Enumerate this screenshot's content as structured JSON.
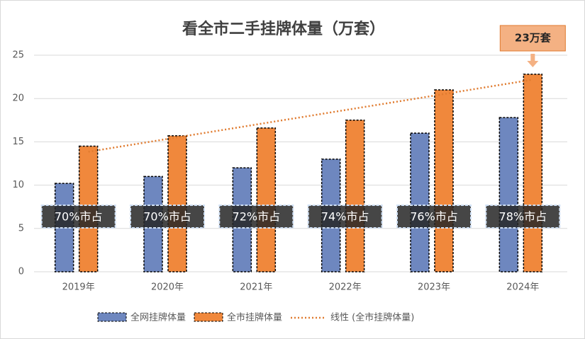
{
  "chart_data": {
    "type": "bar",
    "title": "看全市二手挂牌体量（万套）",
    "categories": [
      "2019年",
      "2020年",
      "2021年",
      "2022年",
      "2023年",
      "2024年"
    ],
    "series": [
      {
        "name": "全网挂牌体量",
        "color": "#6e87bf",
        "values": [
          10.2,
          11.0,
          12.0,
          13.0,
          16.0,
          17.8
        ]
      },
      {
        "name": "全市挂牌体量",
        "color": "#f0883c",
        "values": [
          14.5,
          15.7,
          16.6,
          17.5,
          21.0,
          22.8
        ]
      }
    ],
    "trendline": {
      "name": "线性 (全市挂牌体量)",
      "color": "#e07b2f"
    },
    "share_labels": [
      "70%市占",
      "70%市占",
      "72%市占",
      "74%市占",
      "76%市占",
      "78%市占"
    ],
    "callout": "23万套",
    "ylim": [
      0,
      25
    ],
    "yticks": [
      0,
      5,
      10,
      15,
      20,
      25
    ],
    "grid": true
  }
}
